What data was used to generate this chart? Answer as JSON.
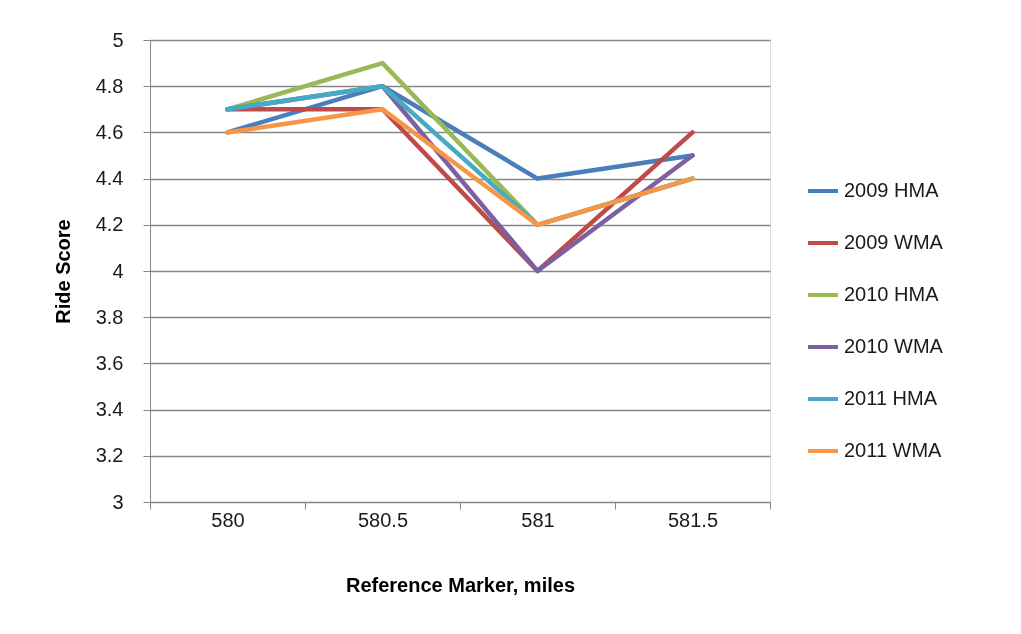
{
  "chart_data": {
    "type": "line",
    "xlabel": "Reference Marker, miles",
    "ylabel": "Ride Score",
    "categories": [
      "580",
      "580.5",
      "581",
      "581.5"
    ],
    "series": [
      {
        "name": "2009 HMA",
        "color": "#4a7ebb",
        "values": [
          4.6,
          4.8,
          4.4,
          4.5
        ]
      },
      {
        "name": "2009 WMA",
        "color": "#be4b48",
        "values": [
          4.7,
          4.7,
          4.0,
          4.6
        ]
      },
      {
        "name": "2010 HMA",
        "color": "#98b954",
        "values": [
          4.7,
          4.9,
          4.2,
          4.4
        ]
      },
      {
        "name": "2010 WMA",
        "color": "#7d60a0",
        "values": [
          4.7,
          4.8,
          4.0,
          4.5
        ]
      },
      {
        "name": "2011 HMA",
        "color": "#46aac5",
        "values": [
          4.7,
          4.8,
          4.2,
          4.4
        ]
      },
      {
        "name": "2011 WMA",
        "color": "#f79646",
        "values": [
          4.6,
          4.7,
          4.2,
          4.4
        ]
      }
    ],
    "ylim": [
      3,
      5
    ],
    "yticks": [
      3,
      3.2,
      3.4,
      3.6,
      3.8,
      4,
      4.2,
      4.4,
      4.6,
      4.8,
      5
    ],
    "grid": "y",
    "legend": "right",
    "marker": "none",
    "line_style": "solid"
  }
}
